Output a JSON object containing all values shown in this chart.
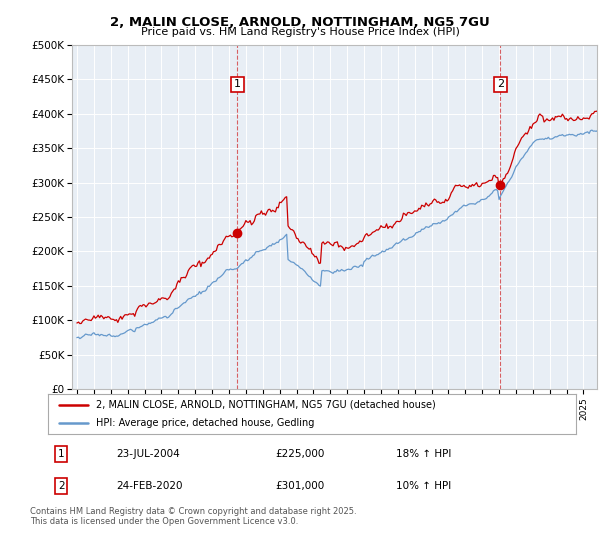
{
  "title1": "2, MALIN CLOSE, ARNOLD, NOTTINGHAM, NG5 7GU",
  "title2": "Price paid vs. HM Land Registry's House Price Index (HPI)",
  "plot_bg": "#e8eef5",
  "red_color": "#cc0000",
  "blue_color": "#6699cc",
  "sale1_date": "23-JUL-2004",
  "sale1_price": 225000,
  "sale1_pct": "18%",
  "sale2_date": "24-FEB-2020",
  "sale2_price": 301000,
  "sale2_pct": "10%",
  "legend1": "2, MALIN CLOSE, ARNOLD, NOTTINGHAM, NG5 7GU (detached house)",
  "legend2": "HPI: Average price, detached house, Gedling",
  "footnote": "Contains HM Land Registry data © Crown copyright and database right 2025.\nThis data is licensed under the Open Government Licence v3.0.",
  "ylim": [
    0,
    500000
  ],
  "yticks": [
    0,
    50000,
    100000,
    150000,
    200000,
    250000,
    300000,
    350000,
    400000,
    450000,
    500000
  ]
}
